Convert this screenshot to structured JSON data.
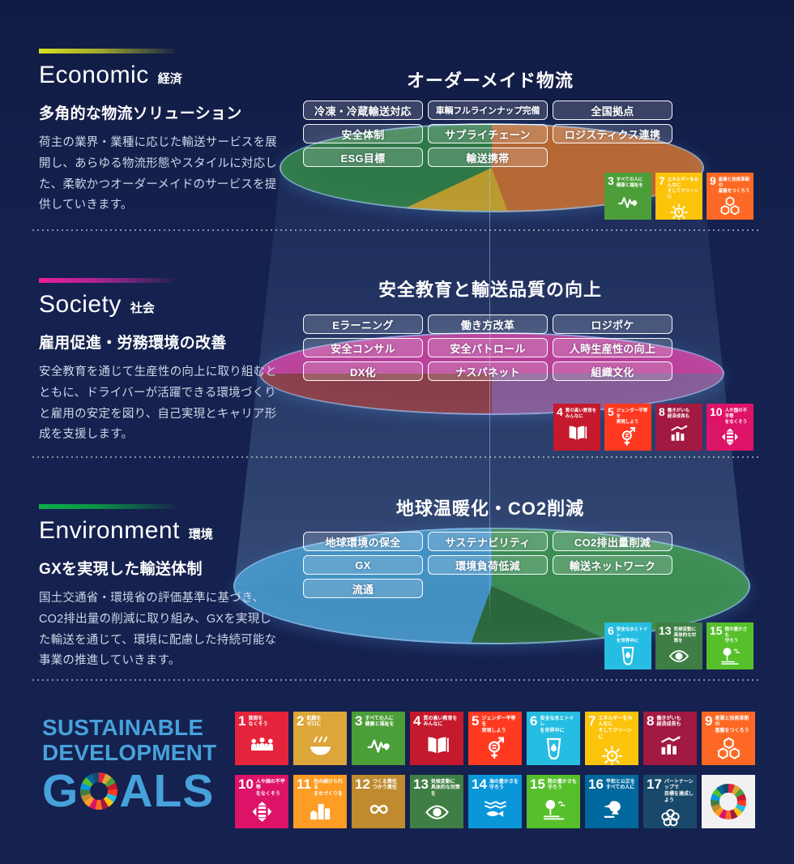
{
  "page": {
    "background": "#15214E",
    "beam_color": "#8FC0E8",
    "axis_color": "#A5C8F5"
  },
  "sections": [
    {
      "id": "economic",
      "title_en": "Economic",
      "title_ja": "経済",
      "accent": [
        "#D9E021",
        "#9FA82C",
        "rgba(95,105,80,0.10)"
      ],
      "heading": "多角的な物流ソリューション",
      "body": "荷主の業界・業種に応じた輸送サービスを展開し、あらゆる物流形態やスタイルに対応した、柔軟かつオーダーメイドのサービスを提供していきます。",
      "diagram_title": "オーダーメイド物流",
      "pill_rows": [
        [
          "冷凍・冷蔵輸送対応",
          "車輌フルラインナップ完備",
          "全国拠点"
        ],
        [
          "安全体制",
          "サプライチェーン",
          "ロジスティクス連携"
        ],
        [
          "ESG目標",
          "輸送携帯"
        ]
      ],
      "ellipse_segments": [
        {
          "color": "#BE6B33",
          "from": 0,
          "to": 160
        },
        {
          "color": "#C2A12D",
          "from": 160,
          "to": 245
        },
        {
          "color": "#2F7D47",
          "from": 245,
          "to": 360
        }
      ],
      "sdg_goals": [
        3,
        7,
        9
      ]
    },
    {
      "id": "society",
      "title_en": "Society",
      "title_ja": "社会",
      "accent": [
        "#EC1E9B",
        "#A62691",
        "rgba(110,50,120,0.10)"
      ],
      "heading": "雇用促進・労務環境の改善",
      "body": "安全教育を通じて生産性の向上に取り組むとともに、ドライバーが活躍できる環境づくりと雇用の安定を図り、自己実現とキャリア形成を支援します。",
      "diagram_title": "安全教育と輸送品質の向上",
      "pill_rows": [
        [
          "Eラーニング",
          "働き方改革",
          "ロジポケ"
        ],
        [
          "安全コンサル",
          "安全パトロール",
          "人時生産性の向上"
        ],
        [
          "DX化",
          "ナスパネット",
          "組織文化"
        ]
      ],
      "ellipse_segments": [
        {
          "color": "#C2429E",
          "from": 0,
          "to": 90
        },
        {
          "color": "#8A5E99",
          "from": 90,
          "to": 180
        },
        {
          "color": "#8E3F48",
          "from": 180,
          "to": 270
        },
        {
          "color": "#C2429E",
          "from": 270,
          "to": 360
        }
      ],
      "sdg_goals": [
        4,
        5,
        8,
        10
      ]
    },
    {
      "id": "environment",
      "title_en": "Environment",
      "title_ja": "環境",
      "accent": [
        "#0DB24B",
        "#0B8F46",
        "rgba(20,110,80,0.10)"
      ],
      "heading": "GXを実現した輸送体制",
      "body": "国土交通省・環境省の評価基準に基づき、CO2排出量の削減に取り組み、GXを実現した輸送を通じて、環境に配慮した持続可能な事業の推進していきます。",
      "diagram_title": "地球温暖化・CO2削減",
      "pill_rows": [
        [
          "地球環境の保全",
          "サステナビリティ",
          "CO2排出量削減"
        ],
        [
          "GX",
          "環境負荷低減",
          "輸送ネットワーク"
        ],
        [
          "流通"
        ]
      ],
      "ellipse_segments": [
        {
          "color": "#3D9153",
          "from": 0,
          "to": 115
        },
        {
          "color": "#2D6B3D",
          "from": 115,
          "to": 200
        },
        {
          "color": "#4596C9",
          "from": 200,
          "to": 360
        }
      ],
      "sdg_goals": [
        6,
        13,
        15
      ]
    }
  ],
  "goals": {
    "1": {
      "label": "貧困を\nなくそう",
      "color": "#E5243B"
    },
    "2": {
      "label": "飢餓を\nゼロに",
      "color": "#DDA63A"
    },
    "3": {
      "label": "すべての人に\n健康と福祉を",
      "color": "#4C9F38"
    },
    "4": {
      "label": "質の高い教育を\nみんなに",
      "color": "#C5192D"
    },
    "5": {
      "label": "ジェンダー平等を\n実現しよう",
      "color": "#FF3A21"
    },
    "6": {
      "label": "安全な水とトイレ\nを世界中に",
      "color": "#26BDE2"
    },
    "7": {
      "label": "エネルギーをみんなに\nそしてクリーンに",
      "color": "#FCC30B"
    },
    "8": {
      "label": "働きがいも\n経済成長も",
      "color": "#A21942"
    },
    "9": {
      "label": "産業と技術革新の\n基盤をつくろう",
      "color": "#FD6925"
    },
    "10": {
      "label": "人や国の不平等\nをなくそう",
      "color": "#DD1367"
    },
    "11": {
      "label": "住み続けられる\nまちづくりを",
      "color": "#FD9D24"
    },
    "12": {
      "label": "つくる責任\nつかう責任",
      "color": "#BF8B2E"
    },
    "13": {
      "label": "気候変動に\n具体的な対策を",
      "color": "#3F7E44"
    },
    "14": {
      "label": "海の豊かさを\n守ろう",
      "color": "#0A97D9"
    },
    "15": {
      "label": "陸の豊かさも\n守ろう",
      "color": "#56C02B"
    },
    "16": {
      "label": "平和と公正を\nすべての人に",
      "color": "#00689D"
    },
    "17": {
      "label": "パートナーシップで\n目標を達成しよう",
      "color": "#19486A"
    }
  },
  "footer": {
    "logo_lines": [
      "SUSTAINABLE",
      "DEVELOPMENT",
      "GOALS"
    ],
    "logo_color": "#47A1DB",
    "wheel_tile_background": "#F1F1F3",
    "row1_goals": [
      1,
      2,
      3,
      4,
      5,
      6,
      7,
      8,
      9
    ],
    "row2_goals": [
      10,
      11,
      12,
      13,
      14,
      15,
      16,
      17
    ]
  }
}
